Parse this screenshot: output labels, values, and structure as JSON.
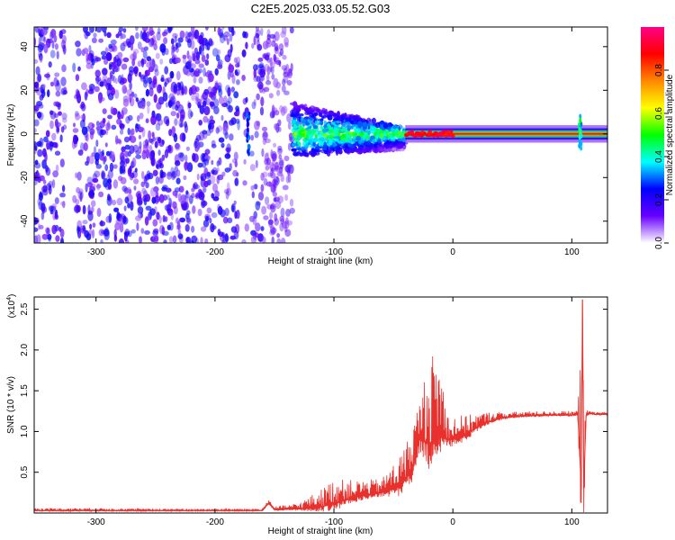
{
  "title": "C2E5.2025.033.05.52.G03",
  "chart_data": [
    {
      "type": "heatmap",
      "xlabel": "Height of straight line (km)",
      "ylabel": "Frequency (Hz)",
      "xlim": [
        -352,
        130
      ],
      "ylim": [
        -50,
        49
      ],
      "xticks": [
        -300,
        -200,
        -100,
        0,
        100
      ],
      "yticks": [
        -40,
        -20,
        0,
        20,
        40
      ],
      "colorbar": {
        "label": "Normalized spectral amplitude",
        "range": [
          0,
          1
        ],
        "ticks": [
          "0.0",
          "0.2",
          "0.4",
          "0.6",
          "0.8"
        ],
        "tick_values": [
          0.0,
          0.2,
          0.4,
          0.6,
          0.8
        ],
        "colors": [
          "#ffffff",
          "#6600ff",
          "#0000ff",
          "#00ffff",
          "#00ff00",
          "#ffff00",
          "#ff8800",
          "#ff0000",
          "#ff0088"
        ]
      },
      "regions": [
        {
          "x": [
            -352,
            -135
          ],
          "y": [
            -50,
            49
          ],
          "description": "broadband noise, amplitude 0.1-0.25"
        },
        {
          "x": [
            -135,
            -40
          ],
          "y": [
            -10,
            12
          ],
          "description": "signal band, amplitude 0.2-0.55"
        },
        {
          "x": [
            -40,
            130
          ],
          "y": [
            -2,
            2
          ],
          "description": "narrow carrier near 0 Hz, amplitude 0.6-0.9"
        }
      ],
      "features": [
        {
          "x": -172,
          "y_range": [
            -10,
            10
          ],
          "amplitude": 0.3
        },
        {
          "x": 107,
          "y_range": [
            -8,
            8
          ],
          "amplitude": 0.5
        }
      ]
    },
    {
      "type": "line",
      "xlabel": "Height of straight line (km)",
      "ylabel": "SNR (10 * v/v)",
      "y_multiplier": "(x10",
      "y_multiplier_exp": "4",
      "xlim": [
        -352,
        130
      ],
      "ylim": [
        0,
        2.65
      ],
      "xticks": [
        -300,
        -200,
        -100,
        0,
        100
      ],
      "yticks": [
        0.5,
        1.0,
        1.5,
        2.0,
        2.5
      ],
      "series": [
        {
          "color": "#e8302c",
          "x": [
            -352,
            -300,
            -250,
            -200,
            -160,
            -155,
            -150,
            -130,
            -110,
            -100,
            -80,
            -60,
            -45,
            -35,
            -28,
            -20,
            -15,
            -10,
            -5,
            0,
            10,
            20,
            30,
            40,
            50,
            60,
            80,
            100,
            105,
            108,
            109,
            110,
            112,
            115,
            120,
            130
          ],
          "y": [
            0.03,
            0.03,
            0.03,
            0.03,
            0.03,
            0.12,
            0.04,
            0.05,
            0.08,
            0.12,
            0.2,
            0.25,
            0.32,
            0.5,
            0.9,
            0.85,
            0.9,
            0.95,
            0.9,
            0.9,
            0.95,
            1.05,
            1.12,
            1.16,
            1.18,
            1.19,
            1.2,
            1.2,
            1.21,
            0.3,
            2.62,
            0.3,
            1.2,
            1.22,
            1.21,
            1.21
          ],
          "envelope_upper": [
            0.06,
            0.06,
            0.05,
            0.05,
            0.05,
            0.18,
            0.08,
            0.12,
            0.3,
            0.42,
            0.4,
            0.42,
            0.7,
            1.0,
            1.4,
            1.9,
            2.0,
            1.85,
            1.25,
            1.2,
            1.2,
            1.22,
            1.24,
            1.24,
            1.24,
            1.25,
            1.25,
            1.25,
            1.26,
            2.3,
            2.62,
            2.45,
            1.27,
            1.25,
            1.24,
            1.24
          ]
        }
      ]
    }
  ]
}
